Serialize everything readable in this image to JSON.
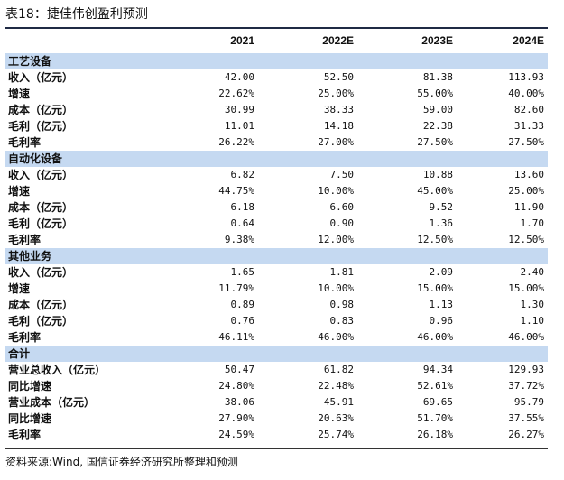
{
  "title": "表18：捷佳伟创盈利预测",
  "columns": [
    "",
    "2021",
    "2022E",
    "2023E",
    "2024E"
  ],
  "sections": [
    {
      "name": "工艺设备",
      "rows": [
        {
          "label": "收入（亿元）",
          "values": [
            "42.00",
            "52.50",
            "81.38",
            "113.93"
          ]
        },
        {
          "label": "增速",
          "values": [
            "22.62%",
            "25.00%",
            "55.00%",
            "40.00%"
          ]
        },
        {
          "label": "成本（亿元）",
          "values": [
            "30.99",
            "38.33",
            "59.00",
            "82.60"
          ]
        },
        {
          "label": "毛利（亿元）",
          "values": [
            "11.01",
            "14.18",
            "22.38",
            "31.33"
          ]
        },
        {
          "label": "毛利率",
          "values": [
            "26.22%",
            "27.00%",
            "27.50%",
            "27.50%"
          ]
        }
      ]
    },
    {
      "name": "自动化设备",
      "rows": [
        {
          "label": "收入（亿元）",
          "values": [
            "6.82",
            "7.50",
            "10.88",
            "13.60"
          ]
        },
        {
          "label": "增速",
          "values": [
            "44.75%",
            "10.00%",
            "45.00%",
            "25.00%"
          ]
        },
        {
          "label": "成本（亿元）",
          "values": [
            "6.18",
            "6.60",
            "9.52",
            "11.90"
          ]
        },
        {
          "label": "毛利（亿元）",
          "values": [
            "0.64",
            "0.90",
            "1.36",
            "1.70"
          ]
        },
        {
          "label": "毛利率",
          "values": [
            "9.38%",
            "12.00%",
            "12.50%",
            "12.50%"
          ]
        }
      ]
    },
    {
      "name": "其他业务",
      "rows": [
        {
          "label": "收入（亿元）",
          "values": [
            "1.65",
            "1.81",
            "2.09",
            "2.40"
          ]
        },
        {
          "label": "增速",
          "values": [
            "11.79%",
            "10.00%",
            "15.00%",
            "15.00%"
          ]
        },
        {
          "label": "成本（亿元）",
          "values": [
            "0.89",
            "0.98",
            "1.13",
            "1.30"
          ]
        },
        {
          "label": "毛利（亿元）",
          "values": [
            "0.76",
            "0.83",
            "0.96",
            "1.10"
          ]
        },
        {
          "label": "毛利率",
          "values": [
            "46.11%",
            "46.00%",
            "46.00%",
            "46.00%"
          ]
        }
      ]
    },
    {
      "name": "合计",
      "rows": [
        {
          "label": "营业总收入（亿元）",
          "values": [
            "50.47",
            "61.82",
            "94.34",
            "129.93"
          ]
        },
        {
          "label": "同比增速",
          "values": [
            "24.80%",
            "22.48%",
            "52.61%",
            "37.72%"
          ]
        },
        {
          "label": "营业成本（亿元）",
          "values": [
            "38.06",
            "45.91",
            "69.65",
            "95.79"
          ]
        },
        {
          "label": "同比增速",
          "values": [
            "27.90%",
            "20.63%",
            "51.70%",
            "37.55%"
          ]
        },
        {
          "label": "毛利率",
          "values": [
            "24.59%",
            "25.74%",
            "26.18%",
            "26.27%"
          ]
        }
      ]
    }
  ],
  "source": "资料来源:Wind, 国信证券经济研究所整理和预测",
  "colors": {
    "section_band": "#c5d9f1",
    "rule": "#1f2a44"
  }
}
